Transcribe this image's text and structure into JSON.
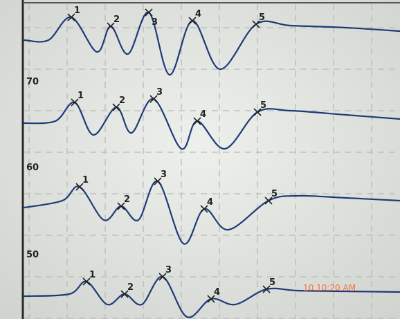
{
  "level_labels": [
    "70",
    "60",
    "50"
  ],
  "traces": [
    {
      "peaks": [
        "1",
        "2",
        "3",
        "4",
        "5"
      ]
    },
    {
      "peaks": [
        "1",
        "2",
        "3",
        "4",
        "5"
      ]
    },
    {
      "peaks": [
        "1",
        "2",
        "3",
        "4",
        "5"
      ]
    },
    {
      "peaks": [
        "1",
        "2",
        "3",
        "4",
        "5"
      ]
    }
  ],
  "timestamp": "10 10:20 AM"
}
